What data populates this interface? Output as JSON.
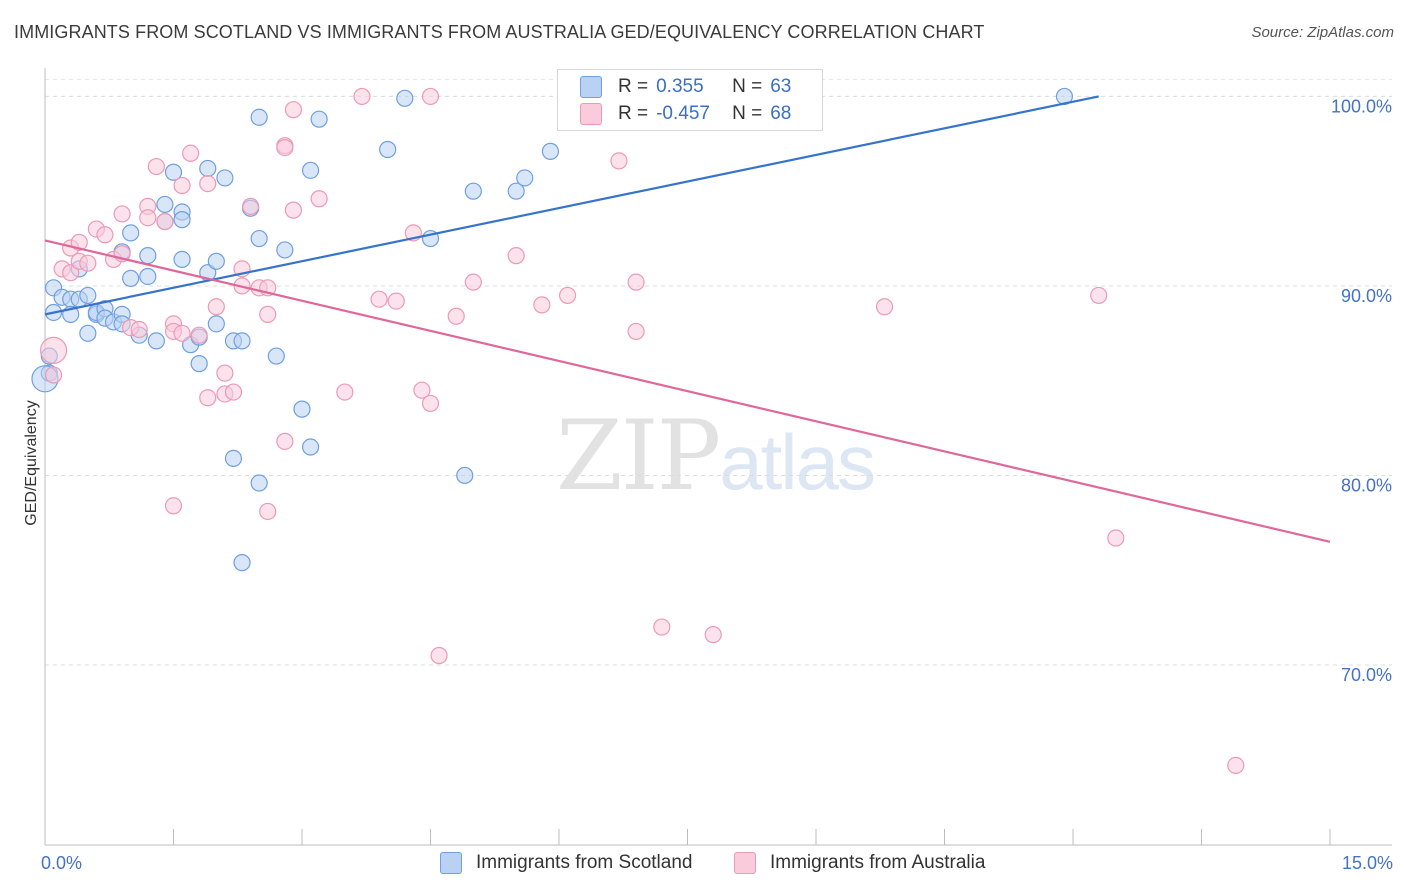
{
  "header": {
    "title": "IMMIGRANTS FROM SCOTLAND VS IMMIGRANTS FROM AUSTRALIA GED/EQUIVALENCY CORRELATION CHART",
    "source": "Source: ZipAtlas.com"
  },
  "watermark": {
    "zip": "ZIP",
    "atlas": "atlas"
  },
  "legend": {
    "r_label": "R =",
    "n_label": "N =",
    "scotland": {
      "r": "0.355",
      "n": "63",
      "color": "#a9c8f0"
    },
    "australia": {
      "r": "-0.457",
      "n": "68",
      "color": "#f5b8cc"
    }
  },
  "bottom_legend": {
    "scotland": "Immigrants from Scotland",
    "australia": "Immigrants from Australia"
  },
  "chart_data": {
    "type": "scatter",
    "xlabel": "",
    "ylabel": "GED/Equivalency",
    "xlim": [
      0,
      15
    ],
    "ylim": [
      60.5,
      101.5
    ],
    "x_tick_labels": [
      "0.0%",
      "15.0%"
    ],
    "y_ticks": [
      70,
      80,
      90,
      100
    ],
    "y_tick_labels": [
      "70.0%",
      "80.0%",
      "90.0%",
      "100.0%"
    ],
    "grid": true,
    "series": [
      {
        "name": "Immigrants from Scotland",
        "color": "#6f9fe0",
        "fill": "#b9d2f3",
        "trend": {
          "x": [
            0.0,
            12.3
          ],
          "y": [
            88.5,
            100.0
          ],
          "color": "#3674cc"
        },
        "points": [
          [
            0.1,
            89.9
          ],
          [
            0.1,
            88.6
          ],
          [
            0.2,
            89.4
          ],
          [
            0.3,
            89.3
          ],
          [
            0.3,
            88.5
          ],
          [
            0.4,
            90.9
          ],
          [
            0.4,
            89.3
          ],
          [
            0.5,
            89.5
          ],
          [
            0.5,
            87.5
          ],
          [
            0.6,
            88.5
          ],
          [
            0.6,
            88.6
          ],
          [
            0.7,
            88.8
          ],
          [
            0.7,
            88.3
          ],
          [
            0.8,
            88.1
          ],
          [
            0.9,
            88.5
          ],
          [
            0.9,
            88.0
          ],
          [
            0.9,
            91.8
          ],
          [
            1.0,
            92.8
          ],
          [
            1.0,
            90.4
          ],
          [
            1.1,
            87.4
          ],
          [
            1.2,
            91.6
          ],
          [
            1.2,
            90.5
          ],
          [
            1.3,
            87.1
          ],
          [
            1.4,
            93.4
          ],
          [
            1.4,
            94.3
          ],
          [
            1.5,
            96.0
          ],
          [
            1.6,
            93.9
          ],
          [
            1.6,
            93.5
          ],
          [
            1.6,
            91.4
          ],
          [
            1.7,
            86.9
          ],
          [
            1.8,
            87.3
          ],
          [
            1.8,
            85.9
          ],
          [
            1.9,
            90.7
          ],
          [
            1.9,
            96.2
          ],
          [
            2.0,
            88.0
          ],
          [
            2.0,
            91.3
          ],
          [
            2.1,
            95.7
          ],
          [
            2.2,
            80.9
          ],
          [
            2.2,
            87.1
          ],
          [
            2.3,
            75.4
          ],
          [
            2.3,
            87.1
          ],
          [
            2.4,
            94.1
          ],
          [
            2.5,
            98.9
          ],
          [
            2.5,
            92.5
          ],
          [
            2.5,
            79.6
          ],
          [
            2.7,
            86.3
          ],
          [
            2.8,
            91.9
          ],
          [
            3.0,
            83.5
          ],
          [
            3.1,
            81.5
          ],
          [
            3.1,
            96.1
          ],
          [
            3.2,
            98.8
          ],
          [
            4.0,
            97.2
          ],
          [
            4.2,
            99.9
          ],
          [
            4.5,
            92.5
          ],
          [
            4.9,
            80.0
          ],
          [
            5.0,
            95.0
          ],
          [
            5.5,
            95.0
          ],
          [
            5.6,
            95.7
          ],
          [
            5.9,
            97.1
          ],
          [
            11.9,
            100.0
          ],
          [
            0.05,
            86.3
          ],
          [
            0.05,
            85.4
          ],
          [
            0.0,
            85.1
          ]
        ]
      },
      {
        "name": "Immigrants from Australia",
        "color": "#ec9ab5",
        "fill": "#f9cbdb",
        "trend": {
          "x": [
            0.0,
            15.0
          ],
          "y": [
            92.4,
            76.5
          ],
          "color": "#e0679a"
        },
        "points": [
          [
            0.1,
            86.6
          ],
          [
            0.1,
            85.3
          ],
          [
            0.2,
            90.9
          ],
          [
            0.3,
            90.7
          ],
          [
            0.3,
            92.0
          ],
          [
            0.4,
            92.3
          ],
          [
            0.4,
            91.3
          ],
          [
            0.5,
            91.2
          ],
          [
            0.6,
            93.0
          ],
          [
            0.7,
            92.7
          ],
          [
            0.8,
            91.4
          ],
          [
            0.9,
            91.7
          ],
          [
            0.9,
            93.8
          ],
          [
            1.0,
            87.8
          ],
          [
            1.1,
            87.7
          ],
          [
            1.2,
            94.2
          ],
          [
            1.2,
            93.6
          ],
          [
            1.3,
            96.3
          ],
          [
            1.4,
            93.4
          ],
          [
            1.5,
            88.0
          ],
          [
            1.5,
            87.6
          ],
          [
            1.6,
            87.5
          ],
          [
            1.5,
            78.4
          ],
          [
            1.6,
            95.3
          ],
          [
            1.7,
            97.0
          ],
          [
            1.8,
            87.4
          ],
          [
            1.9,
            95.4
          ],
          [
            1.9,
            84.1
          ],
          [
            2.0,
            88.9
          ],
          [
            2.1,
            84.3
          ],
          [
            2.1,
            85.4
          ],
          [
            2.2,
            84.4
          ],
          [
            2.3,
            90.9
          ],
          [
            2.3,
            90.0
          ],
          [
            2.4,
            94.2
          ],
          [
            2.5,
            89.9
          ],
          [
            2.6,
            88.5
          ],
          [
            2.6,
            78.1
          ],
          [
            2.6,
            89.9
          ],
          [
            2.8,
            97.4
          ],
          [
            2.8,
            97.3
          ],
          [
            2.8,
            81.8
          ],
          [
            2.9,
            99.3
          ],
          [
            2.9,
            94.0
          ],
          [
            3.2,
            94.6
          ],
          [
            3.5,
            84.4
          ],
          [
            3.7,
            100.0
          ],
          [
            3.9,
            89.3
          ],
          [
            4.1,
            89.2
          ],
          [
            4.3,
            92.8
          ],
          [
            4.4,
            84.5
          ],
          [
            4.5,
            100.0
          ],
          [
            4.5,
            83.8
          ],
          [
            4.6,
            70.5
          ],
          [
            4.8,
            88.4
          ],
          [
            5.0,
            90.2
          ],
          [
            5.5,
            91.6
          ],
          [
            5.8,
            89.0
          ],
          [
            6.1,
            89.5
          ],
          [
            6.7,
            96.6
          ],
          [
            6.9,
            87.6
          ],
          [
            6.9,
            90.2
          ],
          [
            7.2,
            72.0
          ],
          [
            7.8,
            71.6
          ],
          [
            9.8,
            88.9
          ],
          [
            12.3,
            89.5
          ],
          [
            12.5,
            76.7
          ],
          [
            13.9,
            64.7
          ]
        ]
      }
    ]
  }
}
